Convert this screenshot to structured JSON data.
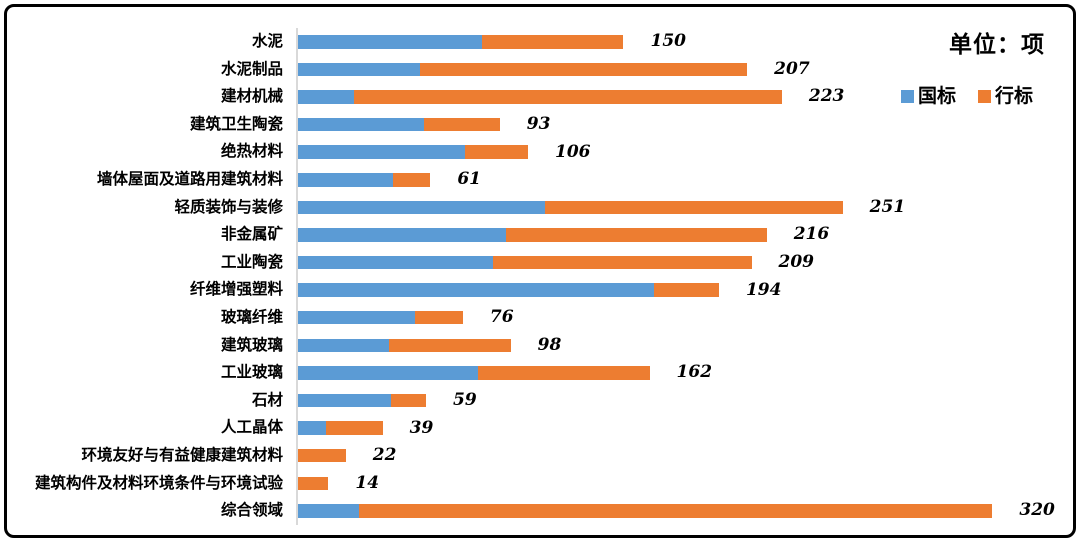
{
  "chart_data": {
    "type": "bar",
    "orientation": "horizontal",
    "stacked": true,
    "title": "单位：项",
    "legend_position": "top-right",
    "grid": false,
    "xlim": [
      0,
      320
    ],
    "categories": [
      "水泥",
      "水泥制品",
      "建材机械",
      "建筑卫生陶瓷",
      "绝热材料",
      "墙体屋面及道路用建筑材料",
      "轻质装饰与装修",
      "非金属矿",
      "工业陶瓷",
      "纤维增强塑料",
      "玻璃纤维",
      "建筑玻璃",
      "工业玻璃",
      "石材",
      "人工晶体",
      "环境友好与有益健康建筑材料",
      "建筑构件及材料环境条件与环境试验",
      "综合领域"
    ],
    "series": [
      {
        "name": "国标",
        "color": "#5B9BD5",
        "values": [
          85,
          56,
          26,
          58,
          77,
          44,
          114,
          96,
          90,
          164,
          54,
          42,
          83,
          43,
          13,
          0,
          0,
          28
        ]
      },
      {
        "name": "行标",
        "color": "#ED7D31",
        "values": [
          65,
          151,
          197,
          35,
          29,
          17,
          137,
          120,
          119,
          30,
          22,
          56,
          79,
          16,
          26,
          22,
          14,
          292
        ]
      }
    ],
    "totals": [
      150,
      207,
      223,
      93,
      106,
      61,
      251,
      216,
      209,
      194,
      76,
      98,
      162,
      59,
      39,
      22,
      14,
      320
    ],
    "value_label_style": "bold-italic total at end of bar",
    "axis_line_color": "#D9D9D9"
  }
}
